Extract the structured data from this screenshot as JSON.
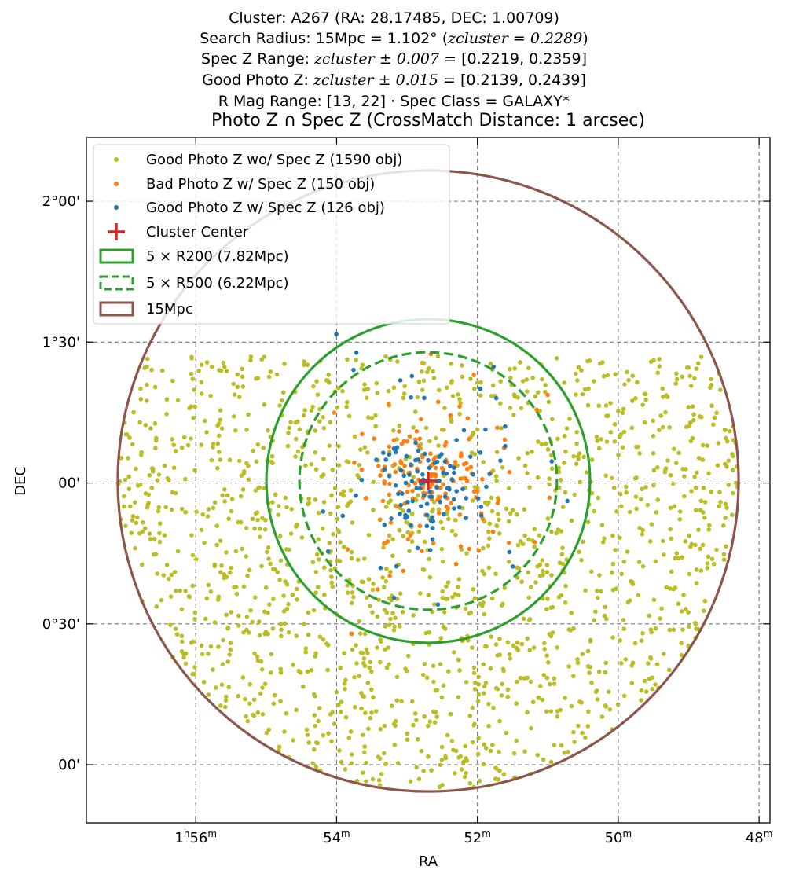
{
  "header": {
    "line1": "Cluster: A267 (RA: 28.17485, DEC: 1.00709)",
    "line2_prefix": "Search Radius: 15Mpc = 1.102° (",
    "line2_z": "zcluster = 0.2289",
    "line2_suffix": ")",
    "line3_prefix": "Spec Z Range: ",
    "line3_z": "zcluster ± 0.007",
    "line3_suffix": " = [0.2219, 0.2359]",
    "line4_prefix": "Good Photo Z: ",
    "line4_z": "zcluster ± 0.015",
    "line4_suffix": " = [0.2139, 0.2439]",
    "line5": "R Mag Range: [13, 22] · Spec Class = GALAXY*"
  },
  "chart_data": {
    "type": "scatter",
    "title": "Photo Z ∩ Spec Z (CrossMatch Distance: 1 arcsec)",
    "xlabel": "RA",
    "ylabel": "DEC",
    "x_unit": "degrees RA (axis printed in hours/minutes, inverted)",
    "xlim": [
      29.35,
      26.93
    ],
    "ylim": [
      -0.1,
      2.33
    ],
    "x_ticks": [
      {
        "value": 29.0,
        "label": "1h56m"
      },
      {
        "value": 28.5,
        "label": "54m"
      },
      {
        "value": 28.0,
        "label": "52m"
      },
      {
        "value": 27.5,
        "label": "50m"
      },
      {
        "value": 27.0,
        "label": "48m"
      }
    ],
    "y_ticks": [
      {
        "value": 0.0,
        "label": "00'"
      },
      {
        "value": 0.5,
        "label": "0°30'"
      },
      {
        "value": 1.0,
        "label": "00'"
      },
      {
        "value": 1.5,
        "label": "1°30'"
      },
      {
        "value": 2.0,
        "label": "2°00'"
      }
    ],
    "grid": true,
    "cluster_center": {
      "ra": 28.17485,
      "dec": 1.00709
    },
    "circles": [
      {
        "name": "5 × R200 (7.82Mpc)",
        "radius_deg": 0.5745,
        "style": "solid",
        "color": "#2ca02c"
      },
      {
        "name": "5 × R500 (6.22Mpc)",
        "radius_deg": 0.457,
        "style": "dashed",
        "color": "#2ca02c"
      },
      {
        "name": "15Mpc",
        "radius_deg": 1.102,
        "style": "solid",
        "color": "#8c564b"
      }
    ],
    "series": [
      {
        "name": "Good Photo Z wo/ Spec Z (1590 obj)",
        "color": "#bcbd22",
        "count": 1590,
        "distribution": "uniform within 15Mpc circle, DEC ≤ 1.45"
      },
      {
        "name": "Bad Photo Z w/ Spec Z (150 obj)",
        "color": "#ff7f0e",
        "count": 150,
        "distribution": "concentrated around cluster center"
      },
      {
        "name": "Good Photo Z w/ Spec Z (126 obj)",
        "color": "#1f77b4",
        "count": 126,
        "distribution": "concentrated around cluster center"
      }
    ],
    "legend": {
      "placement": "upper-left",
      "entries": [
        {
          "label": "Good Photo Z wo/ Spec Z (1590 obj)",
          "marker": "dot",
          "color": "#bcbd22"
        },
        {
          "label": "Bad Photo Z w/ Spec Z (150 obj)",
          "marker": "dot",
          "color": "#ff7f0e"
        },
        {
          "label": "Good Photo Z w/ Spec Z (126 obj)",
          "marker": "dot",
          "color": "#1f77b4"
        },
        {
          "label": "Cluster Center",
          "marker": "plus",
          "color": "#d62728"
        },
        {
          "label": "5 × R200 (7.82Mpc)",
          "marker": "rect-solid",
          "color": "#2ca02c"
        },
        {
          "label": "5 × R500 (6.22Mpc)",
          "marker": "rect-dashed",
          "color": "#2ca02c"
        },
        {
          "label": "15Mpc",
          "marker": "rect-solid",
          "color": "#8c564b"
        }
      ]
    }
  }
}
